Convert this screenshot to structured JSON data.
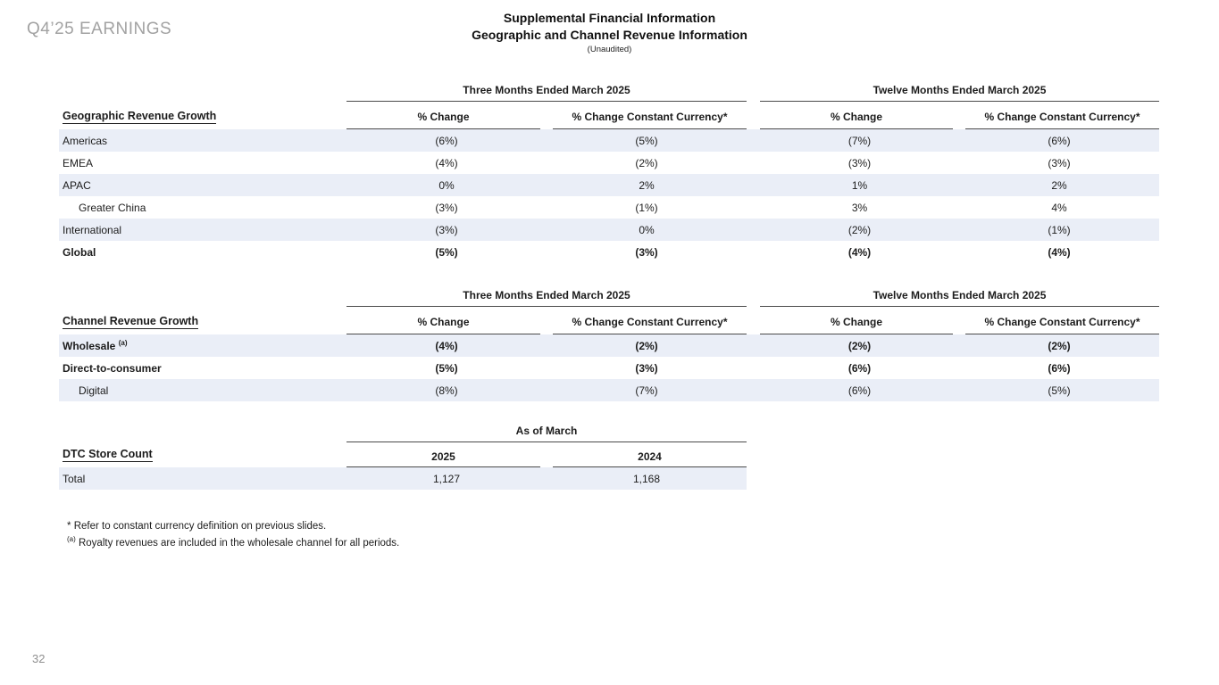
{
  "page": {
    "brand": "Q4’25 EARNINGS",
    "page_number": "32",
    "colors": {
      "row_shade": "#eaeef7",
      "rule": "#4a4a4a",
      "brand_gray": "#a2a2a2"
    }
  },
  "title": {
    "line1": "Supplemental Financial Information",
    "line2": "Geographic and Channel Revenue Information",
    "line3": "(Unaudited)"
  },
  "geo_table": {
    "section_label": "Geographic Revenue Growth",
    "group_headers": [
      "Three Months Ended March 2025",
      "Twelve Months Ended March 2025"
    ],
    "col_headers": [
      "% Change",
      "% Change Constant Currency*",
      "% Change",
      "% Change Constant Currency*"
    ],
    "rows": [
      {
        "label": "Americas",
        "values": [
          "(6%)",
          "(5%)",
          "(7%)",
          "(6%)"
        ],
        "indent": false,
        "bold": false
      },
      {
        "label": "EMEA",
        "values": [
          "(4%)",
          "(2%)",
          "(3%)",
          "(3%)"
        ],
        "indent": false,
        "bold": false
      },
      {
        "label": "APAC",
        "values": [
          "0%",
          "2%",
          "1%",
          "2%"
        ],
        "indent": false,
        "bold": false
      },
      {
        "label": "Greater China",
        "values": [
          "(3%)",
          "(1%)",
          "3%",
          "4%"
        ],
        "indent": true,
        "bold": false
      },
      {
        "label": "International",
        "values": [
          "(3%)",
          "0%",
          "(2%)",
          "(1%)"
        ],
        "indent": false,
        "bold": false
      },
      {
        "label": "Global",
        "values": [
          "(5%)",
          "(3%)",
          "(4%)",
          "(4%)"
        ],
        "indent": false,
        "bold": true
      }
    ]
  },
  "channel_table": {
    "section_label": "Channel Revenue Growth",
    "group_headers": [
      "Three Months Ended March 2025",
      "Twelve Months Ended March 2025"
    ],
    "col_headers": [
      "% Change",
      "% Change Constant Currency*",
      "% Change",
      "% Change Constant Currency*"
    ],
    "rows": [
      {
        "label": "Wholesale",
        "sup": "(a)",
        "values": [
          "(4%)",
          "(2%)",
          "(2%)",
          "(2%)"
        ],
        "indent": false,
        "bold": true
      },
      {
        "label": "Direct-to-consumer",
        "values": [
          "(5%)",
          "(3%)",
          "(6%)",
          "(6%)"
        ],
        "indent": false,
        "bold": true
      },
      {
        "label": "Digital",
        "values": [
          "(8%)",
          "(7%)",
          "(6%)",
          "(5%)"
        ],
        "indent": true,
        "bold": false
      }
    ]
  },
  "store_table": {
    "section_label": "DTC Store Count",
    "group_header": "As of March",
    "col_headers": [
      "2025",
      "2024"
    ],
    "rows": [
      {
        "label": "Total",
        "values": [
          "1,127",
          "1,168"
        ]
      }
    ]
  },
  "footnotes": [
    {
      "marker": "*",
      "text": "Refer to constant currency definition on previous slides."
    },
    {
      "marker": "(a)",
      "text": "Royalty revenues are included in the wholesale channel for all periods."
    }
  ]
}
